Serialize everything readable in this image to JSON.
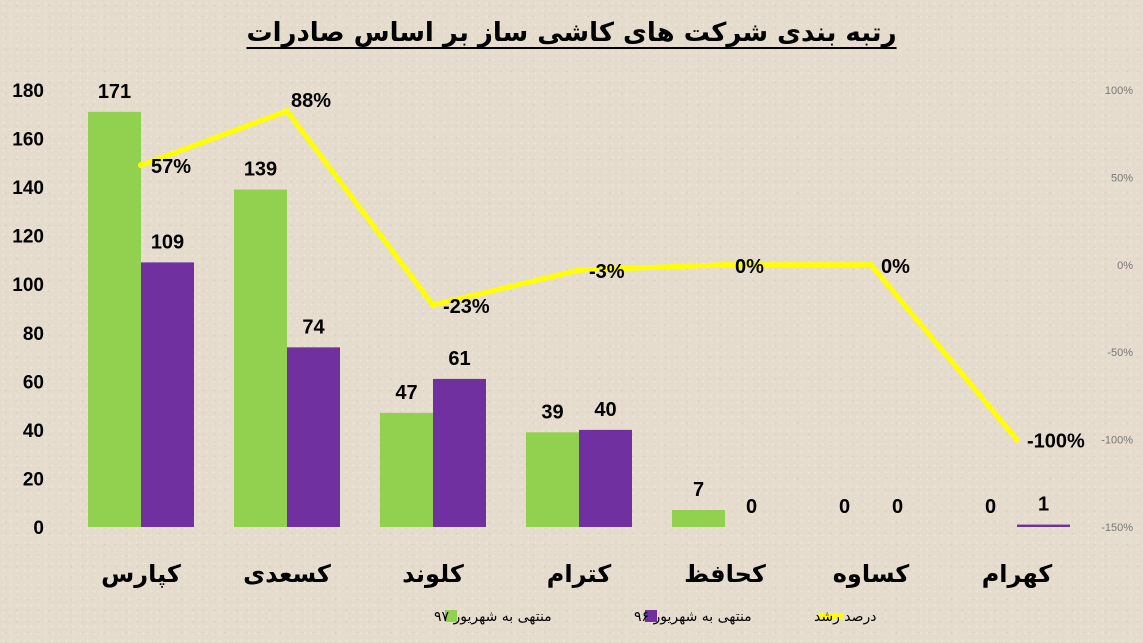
{
  "chart_data": {
    "type": "bar",
    "title": "رتبه بندی شرکت های کاشی ساز بر اساس صادرات",
    "categories": [
      "کپارس",
      "کسعدی",
      "کلوند",
      "کترام",
      "کحافظ",
      "کساوه",
      "کهرام"
    ],
    "series": [
      {
        "name": "منتهی به شهریور ۹۷",
        "type": "bar",
        "axis": "left",
        "color": "#92d050",
        "values": [
          171,
          139,
          47,
          39,
          7,
          0,
          0
        ]
      },
      {
        "name": "منتهی به شهریور ۹۶",
        "type": "bar",
        "axis": "left",
        "color": "#7030a0",
        "values": [
          109,
          74,
          61,
          40,
          0,
          0,
          1
        ]
      },
      {
        "name": "درصد رشد",
        "type": "line",
        "axis": "right",
        "color": "#ffff00",
        "values": [
          57,
          88,
          -23,
          -3,
          0,
          0,
          -100
        ],
        "labels": [
          "57%",
          "88%",
          "-23%",
          "-3%",
          "0%",
          "0%",
          "-100%"
        ]
      }
    ],
    "y_left": {
      "min": 0,
      "max": 180,
      "ticks": [
        "0",
        "20",
        "40",
        "60",
        "80",
        "100",
        "120",
        "140",
        "160",
        "180"
      ]
    },
    "y_right": {
      "min": -150,
      "max": 100,
      "ticks": [
        "-150%",
        "-100%",
        "-50%",
        "0%",
        "50%",
        "100%"
      ]
    },
    "legend_position": "bottom",
    "grid": false
  }
}
